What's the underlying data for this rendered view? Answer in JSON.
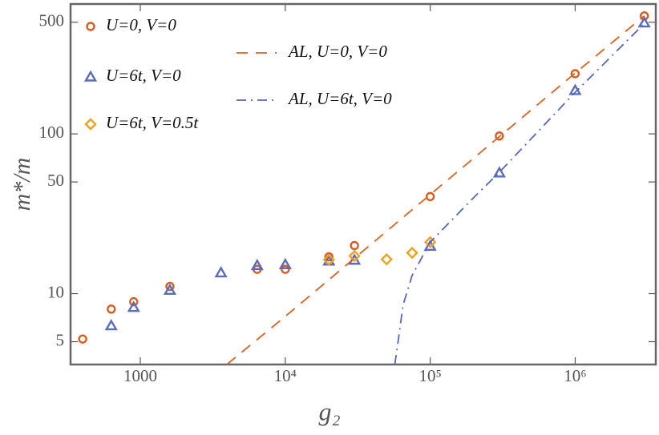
{
  "chart_data": {
    "type": "scatter",
    "xlog": true,
    "ylog": true,
    "legend": "upper left",
    "x_label": "g₂",
    "y_label": "m*/m",
    "xlim": [
      330,
      3600000
    ],
    "ylim": [
      3.6,
      650
    ],
    "xticks": [
      1000,
      {
        "value": 10000,
        "label": "10⁴"
      },
      {
        "value": 100000,
        "label": "10⁵"
      },
      {
        "value": 1000000,
        "label": "10⁶"
      }
    ],
    "yticks": [
      5,
      10,
      50,
      100,
      500
    ],
    "series": [
      {
        "name": "U=0, V=0",
        "color": "#dd5b1d",
        "marker": "circle",
        "x": [
          400,
          630,
          900,
          1600,
          6400,
          10000,
          20000,
          30000,
          100000,
          300000,
          1000000,
          3000000
        ],
        "values": [
          5.2,
          8.0,
          8.9,
          11.1,
          14.2,
          14.2,
          17,
          20,
          40.5,
          97,
          238,
          548
        ]
      },
      {
        "name": "U=6t, V=0",
        "color": "#5a6bc0",
        "marker": "triangle",
        "x": [
          630,
          900,
          1600,
          3600,
          6400,
          10000,
          20000,
          30000,
          100000,
          300000,
          1000000,
          3000000
        ],
        "values": [
          6.3,
          8.2,
          10.5,
          13.5,
          15,
          15.2,
          16,
          16.2,
          19.8,
          57,
          187,
          495
        ]
      },
      {
        "name": "U=6t, V=0.5t",
        "color": "#f0a01a",
        "marker": "diamond",
        "x": [
          20000,
          30000,
          50000,
          75000,
          100000
        ],
        "values": [
          16.3,
          17.2,
          16.4,
          18,
          21
        ]
      },
      {
        "name": "AL, U=0, V=0",
        "color": "#e06020",
        "dash": "dashed",
        "x": [
          3950,
          10000,
          100000,
          1000000,
          3000000
        ],
        "values": [
          3.6,
          7.2,
          41.7,
          240,
          548
        ]
      },
      {
        "name": "AL, U=6t, V=0",
        "color": "#5566bb",
        "dash": "dashdot",
        "x": [
          57000,
          60000,
          65000,
          75000,
          100000,
          200000,
          300000,
          1000000,
          3000000
        ],
        "values": [
          3.6,
          5,
          8.5,
          13,
          21,
          40,
          57.5,
          182,
          490
        ]
      }
    ]
  }
}
